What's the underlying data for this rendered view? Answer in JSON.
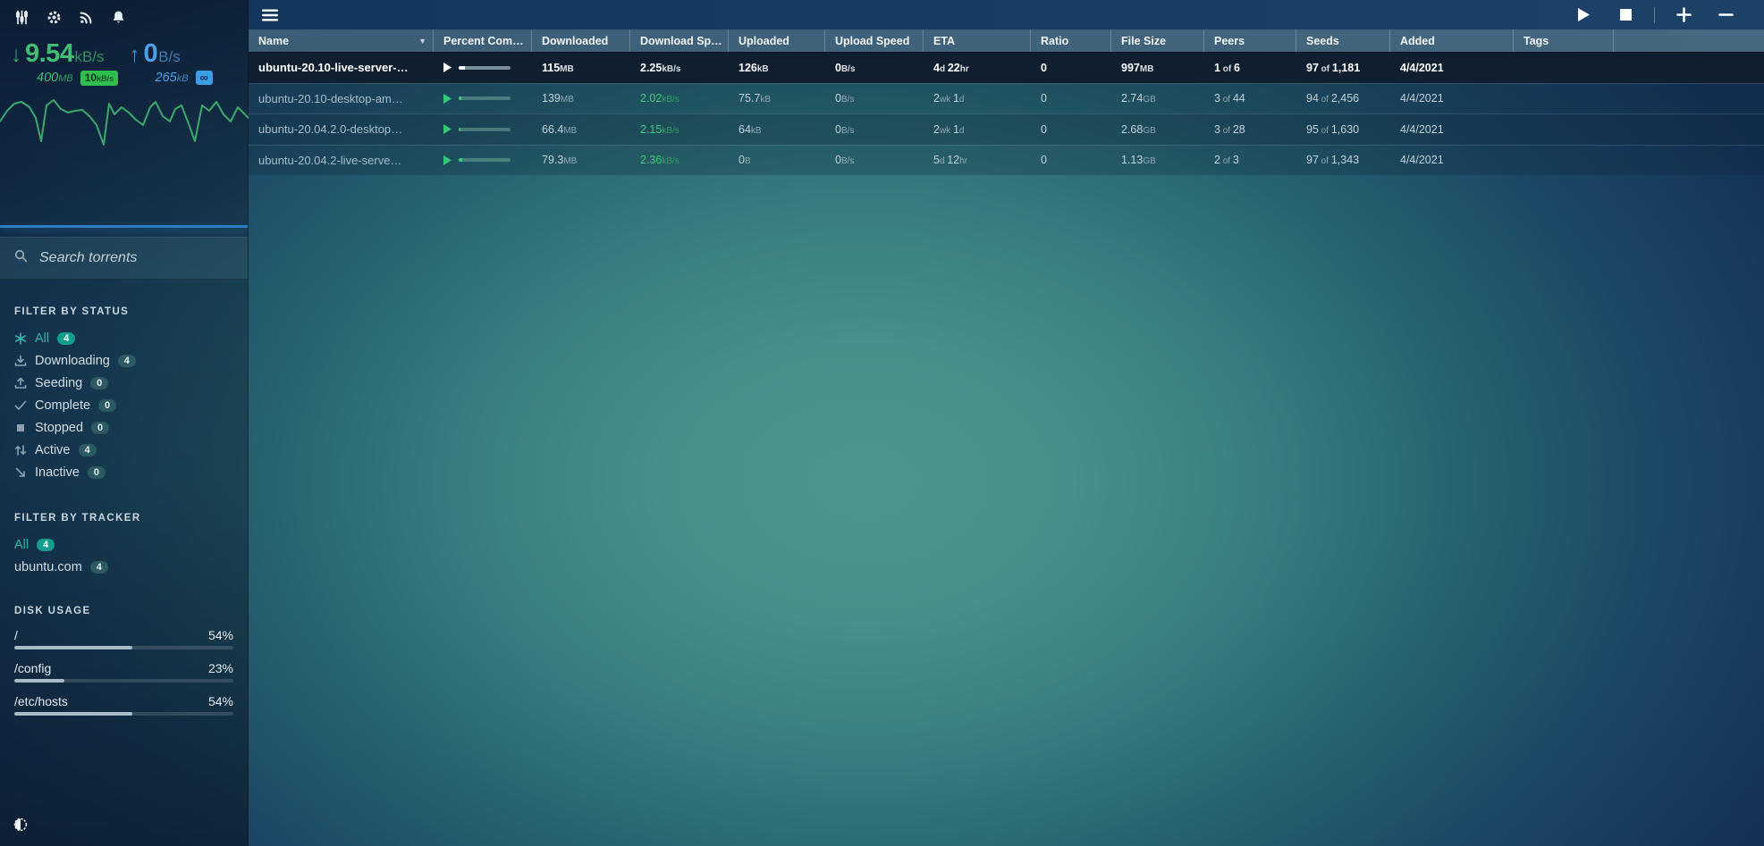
{
  "colors": {
    "accent_download": "#42bd74",
    "accent_upload": "#4aa3e8",
    "active_filter": "#2fb5a2",
    "divider_blue": "#2e7cc0",
    "selected_row_bg": "#0f1f30",
    "header_bg": "#3f6178",
    "download_limit_badge_bg": "#2fbf4f",
    "upload_limit_badge_bg": "#3d9ee6"
  },
  "sidebar": {
    "toolbar_icons": [
      "sliders-icon",
      "gear-icon",
      "feed-icon",
      "bell-icon"
    ],
    "transfer": {
      "download": {
        "rate": "9.54|kB/s",
        "total": "400|MB",
        "limit_badge": "10|kB/s"
      },
      "upload": {
        "rate": "0|B/s",
        "total": "265|kB",
        "limit_badge": "∞"
      }
    },
    "search": {
      "placeholder": "Search torrents",
      "value": ""
    },
    "status_filter": {
      "title": "FILTER BY STATUS",
      "items": [
        {
          "label": "All",
          "count": "4",
          "icon": "asterisk-icon",
          "active": true
        },
        {
          "label": "Downloading",
          "count": "4",
          "icon": "download-icon",
          "active": false
        },
        {
          "label": "Seeding",
          "count": "0",
          "icon": "seed-icon",
          "active": false
        },
        {
          "label": "Complete",
          "count": "0",
          "icon": "check-icon",
          "active": false
        },
        {
          "label": "Stopped",
          "count": "0",
          "icon": "stop-square-icon",
          "active": false
        },
        {
          "label": "Active",
          "count": "4",
          "icon": "active-arrows-icon",
          "active": false
        },
        {
          "label": "Inactive",
          "count": "0",
          "icon": "inactive-arrow-icon",
          "active": false
        }
      ]
    },
    "tracker_filter": {
      "title": "FILTER BY TRACKER",
      "items": [
        {
          "label": "All",
          "count": "4",
          "active": true
        },
        {
          "label": "ubuntu.com",
          "count": "4",
          "active": false
        }
      ]
    },
    "disk_usage": {
      "title": "DISK USAGE",
      "disks": [
        {
          "path": "/",
          "percent_label": "54%",
          "percent": 54
        },
        {
          "path": "/config",
          "percent_label": "23%",
          "percent": 23
        },
        {
          "path": "/etc/hosts",
          "percent_label": "54%",
          "percent": 54
        }
      ]
    },
    "theme_toggle_icon": "contrast-icon"
  },
  "toolbar": {
    "menu_icon": "hamburger-icon",
    "actions": [
      "start-torrent",
      "stop-torrent",
      "add-torrent",
      "remove-torrent"
    ]
  },
  "table": {
    "columns": [
      {
        "key": "name",
        "label": "Name",
        "sorted": "desc"
      },
      {
        "key": "pct",
        "label": "Percent Com…"
      },
      {
        "key": "downloaded",
        "label": "Downloaded"
      },
      {
        "key": "dlspeed",
        "label": "Download Sp…"
      },
      {
        "key": "uploaded",
        "label": "Uploaded"
      },
      {
        "key": "ulspeed",
        "label": "Upload Speed"
      },
      {
        "key": "eta",
        "label": "ETA"
      },
      {
        "key": "ratio",
        "label": "Ratio"
      },
      {
        "key": "size",
        "label": "File Size"
      },
      {
        "key": "peers",
        "label": "Peers"
      },
      {
        "key": "seeds",
        "label": "Seeds"
      },
      {
        "key": "added",
        "label": "Added"
      },
      {
        "key": "tags",
        "label": "Tags"
      },
      {
        "key": "filler",
        "label": ""
      }
    ],
    "rows": [
      {
        "name": "ubuntu-20.10-live-server-…",
        "selected": true,
        "percent": 12,
        "downloaded": "115|MB",
        "dlspeed": "2.25|kB/s",
        "uploaded": "126|kB",
        "ulspeed": "0|B/s",
        "eta": "4|d |22|hr",
        "ratio": "0",
        "size": "997|MB",
        "peers": "1| of |6",
        "seeds": "97| of |1,181",
        "added": "4/4/2021",
        "tags": ""
      },
      {
        "name": "ubuntu-20.10-desktop-am…",
        "selected": false,
        "percent": 5,
        "downloaded": "139|MB",
        "dlspeed": "2.02|kB/s",
        "uploaded": "75.7|kB",
        "ulspeed": "0|B/s",
        "eta": "2|wk |1|d",
        "ratio": "0",
        "size": "2.74|GB",
        "peers": "3| of |44",
        "seeds": "94| of |2,456",
        "added": "4/4/2021",
        "tags": ""
      },
      {
        "name": "ubuntu-20.04.2.0-desktop…",
        "selected": false,
        "percent": 3,
        "downloaded": "66.4|MB",
        "dlspeed": "2.15|kB/s",
        "uploaded": "64|kB",
        "ulspeed": "0|B/s",
        "eta": "2|wk |1|d",
        "ratio": "0",
        "size": "2.68|GB",
        "peers": "3| of |28",
        "seeds": "95| of |1,630",
        "added": "4/4/2021",
        "tags": ""
      },
      {
        "name": "ubuntu-20.04.2-live-serve…",
        "selected": false,
        "percent": 7,
        "downloaded": "79.3|MB",
        "dlspeed": "2.36|kB/s",
        "uploaded": "0|B",
        "ulspeed": "0|B/s",
        "eta": "5|d |12|hr",
        "ratio": "0",
        "size": "1.13|GB",
        "peers": "2| of |3",
        "seeds": "97| of |1,343",
        "added": "4/4/2021",
        "tags": ""
      }
    ]
  }
}
